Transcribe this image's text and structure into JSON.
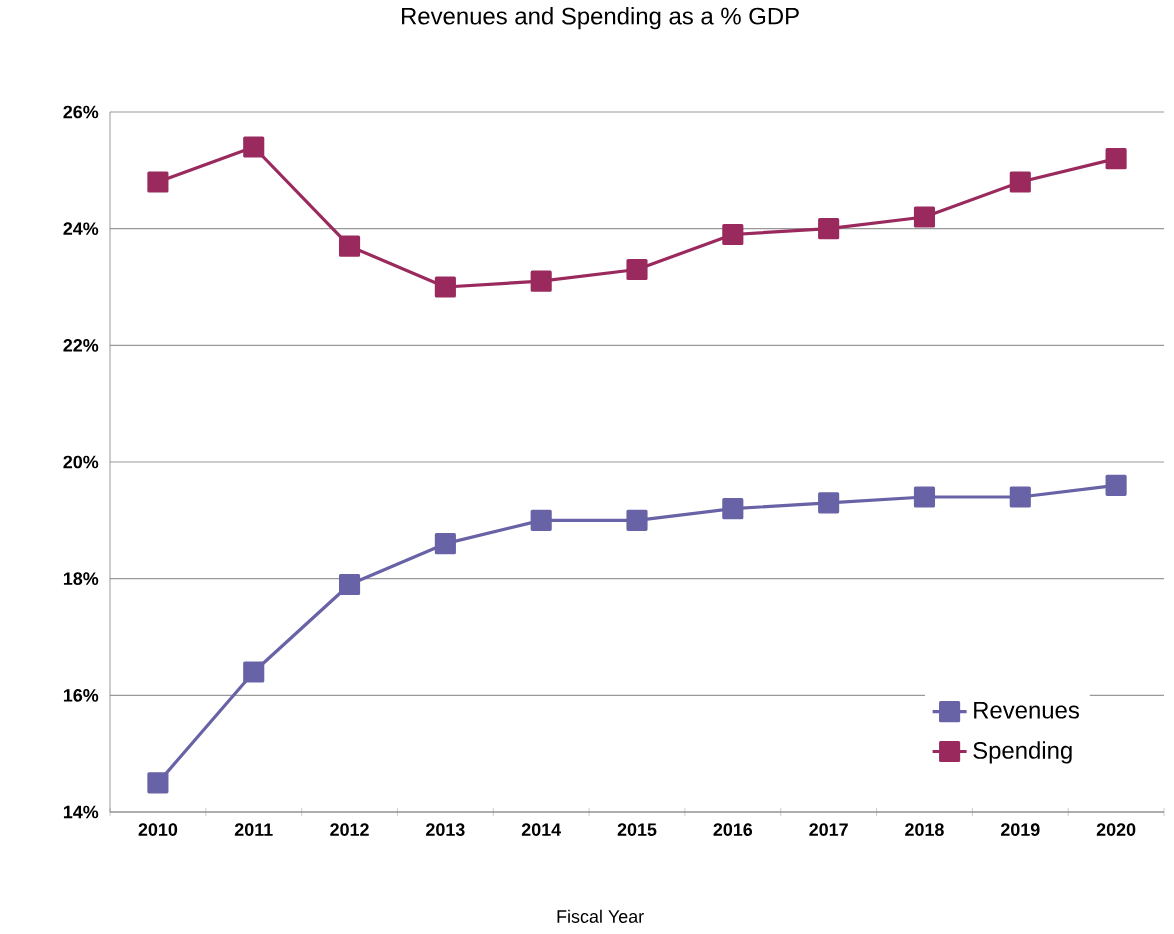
{
  "chart_data": {
    "type": "line",
    "title": "Revenues and Spending as a % GDP",
    "xlabel": "Fiscal Year",
    "categories": [
      "2010",
      "2011",
      "2012",
      "2013",
      "2014",
      "2015",
      "2016",
      "2017",
      "2018",
      "2019",
      "2020"
    ],
    "series": [
      {
        "name": "Revenues",
        "color": "#6862a6",
        "values": [
          14.5,
          16.4,
          17.9,
          18.6,
          19.0,
          19.0,
          19.2,
          19.3,
          19.4,
          19.4,
          19.6
        ]
      },
      {
        "name": "Spending",
        "color": "#9a2a5e",
        "values": [
          24.8,
          25.4,
          23.7,
          23.0,
          23.1,
          23.3,
          23.9,
          24.0,
          24.2,
          24.8,
          25.2
        ]
      }
    ],
    "ylim": [
      14,
      26
    ],
    "yticks": [
      {
        "value": 14,
        "label": "14%"
      },
      {
        "value": 16,
        "label": "16%"
      },
      {
        "value": 18,
        "label": "18%"
      },
      {
        "value": 20,
        "label": "20%"
      },
      {
        "value": 22,
        "label": "22%"
      },
      {
        "value": 24,
        "label": "24%"
      },
      {
        "value": 26,
        "label": "26%"
      }
    ],
    "grid": "y",
    "legend": "bottom right",
    "marker": "square",
    "line_style": "solid"
  }
}
